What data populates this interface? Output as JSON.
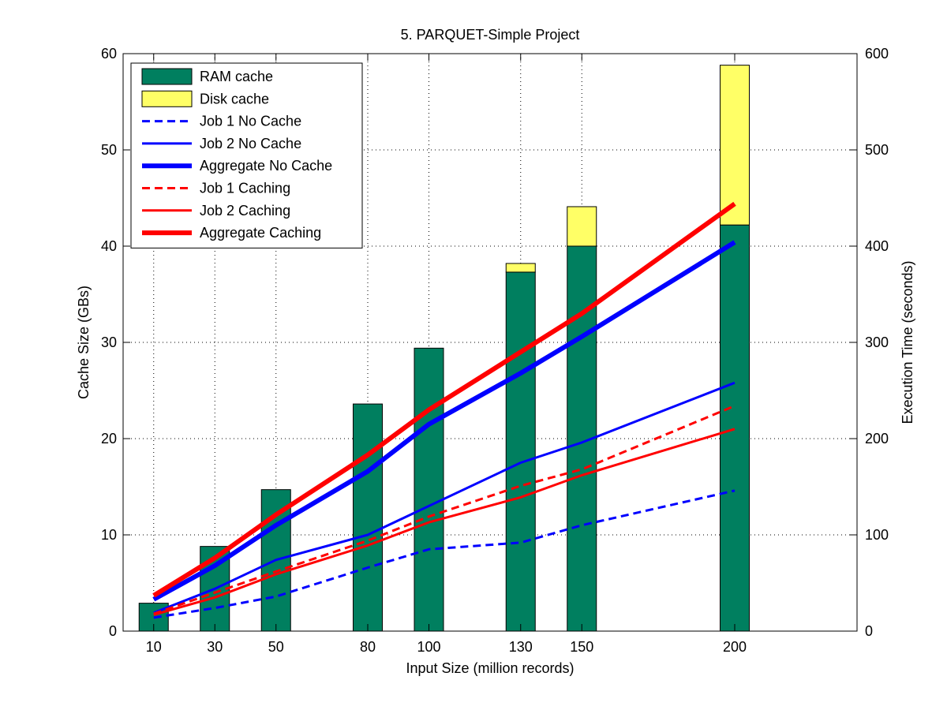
{
  "chart_data": {
    "type": "bar+line",
    "title": "5. PARQUET-Simple Project",
    "xlabel": "Input Size (million records)",
    "ylabel_left": "Cache Size (GBs)",
    "ylabel_right": "Execution Time (seconds)",
    "x_ticks": [
      10,
      30,
      50,
      80,
      100,
      130,
      150,
      200
    ],
    "xlim": [
      0,
      240
    ],
    "ylim_left": [
      0,
      60
    ],
    "yticks_left": [
      0,
      10,
      20,
      30,
      40,
      50,
      60
    ],
    "ylim_right": [
      0,
      600
    ],
    "yticks_right": [
      0,
      100,
      200,
      300,
      400,
      500,
      600
    ],
    "grid": true,
    "legend_position": "top-left",
    "bars": [
      {
        "name": "RAM cache",
        "color": "#007f5f",
        "x": [
          10,
          30,
          50,
          80,
          100,
          130,
          150,
          200
        ],
        "values": [
          2.9,
          8.8,
          14.7,
          23.6,
          29.4,
          37.3,
          40.0,
          42.2
        ]
      },
      {
        "name": "Disk cache",
        "color": "#ffff66",
        "x": [
          10,
          30,
          50,
          80,
          100,
          130,
          150,
          200
        ],
        "values": [
          0,
          0,
          0,
          0,
          0,
          0.9,
          4.1,
          16.6
        ]
      }
    ],
    "series": [
      {
        "name": "Job 1 No Cache",
        "color": "#0000ff",
        "style": "dashed",
        "width": 3,
        "x": [
          10,
          30,
          50,
          80,
          100,
          130,
          150,
          200
        ],
        "values": [
          14,
          24,
          36,
          66,
          85,
          92,
          110,
          146
        ]
      },
      {
        "name": "Job 2 No Cache",
        "color": "#0000ff",
        "style": "solid",
        "width": 3,
        "x": [
          10,
          30,
          50,
          80,
          100,
          130,
          150,
          200
        ],
        "values": [
          19,
          44,
          74,
          100,
          130,
          175,
          196,
          258
        ]
      },
      {
        "name": "Aggregate No Cache",
        "color": "#0000ff",
        "style": "solid",
        "width": 6,
        "x": [
          10,
          30,
          50,
          80,
          100,
          130,
          150,
          200
        ],
        "values": [
          33,
          68,
          110,
          166,
          215,
          268,
          306,
          404
        ]
      },
      {
        "name": "Job 1 Caching",
        "color": "#ff0000",
        "style": "dashed",
        "width": 3,
        "x": [
          10,
          30,
          50,
          80,
          100,
          130,
          150,
          200
        ],
        "values": [
          18,
          40,
          62,
          94,
          119,
          151,
          168,
          234
        ]
      },
      {
        "name": "Job 2 Caching",
        "color": "#ff0000",
        "style": "solid",
        "width": 3,
        "x": [
          10,
          30,
          50,
          80,
          100,
          130,
          150,
          200
        ],
        "values": [
          17,
          35,
          59,
          89,
          113,
          139,
          162,
          210
        ]
      },
      {
        "name": "Aggregate Caching",
        "color": "#ff0000",
        "style": "solid",
        "width": 6,
        "x": [
          10,
          30,
          50,
          80,
          100,
          130,
          150,
          200
        ],
        "values": [
          37,
          76,
          121,
          183,
          230,
          290,
          330,
          444
        ]
      }
    ]
  }
}
